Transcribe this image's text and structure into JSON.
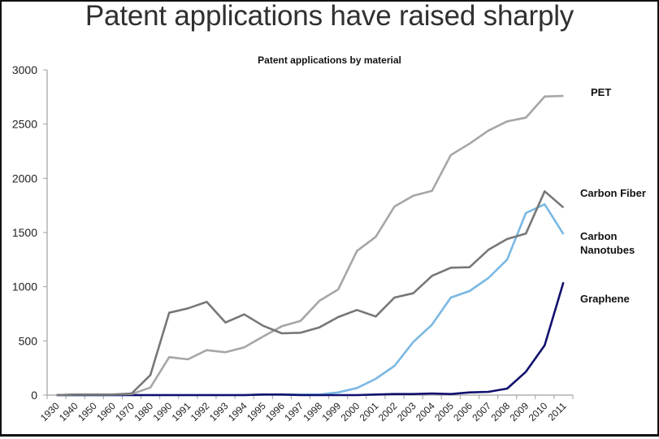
{
  "header": {
    "title": "Patent applications have raised sharply"
  },
  "chart_data": {
    "type": "line",
    "title": "Patent applications by material",
    "xlabel": "",
    "ylabel": "",
    "ylim": [
      0,
      3000
    ],
    "yticks": [
      "0",
      "500",
      "1000",
      "1500",
      "2000",
      "2500",
      "3000"
    ],
    "ytick_values": [
      0,
      500,
      1000,
      1500,
      2000,
      2500,
      3000
    ],
    "grid": false,
    "legend": "direct labels at right end of lines",
    "categories": [
      "1930",
      "1940",
      "1950",
      "1960",
      "1970",
      "1980",
      "1990",
      "1991",
      "1992",
      "1993",
      "1994",
      "1995",
      "1996",
      "1997",
      "1998",
      "1999",
      "2000",
      "2001",
      "2002",
      "2003",
      "2004",
      "2005",
      "2006",
      "2007",
      "2008",
      "2009",
      "2010",
      "2011"
    ],
    "series": [
      {
        "name": "PET",
        "label_lines": [
          "PET"
        ],
        "color": "#a6a6a6",
        "values": [
          0,
          5,
          5,
          5,
          10,
          70,
          350,
          330,
          415,
          395,
          440,
          540,
          635,
          685,
          870,
          975,
          1330,
          1460,
          1740,
          1840,
          1885,
          2215,
          2320,
          2440,
          2525,
          2560,
          2755,
          2760
        ]
      },
      {
        "name": "Carbon Fiber",
        "label_lines": [
          "Carbon Fiber"
        ],
        "color": "#777777",
        "values": [
          0,
          5,
          5,
          5,
          15,
          185,
          760,
          800,
          860,
          670,
          745,
          640,
          570,
          575,
          625,
          720,
          785,
          725,
          900,
          940,
          1100,
          1175,
          1180,
          1340,
          1440,
          1490,
          1880,
          1730
        ]
      },
      {
        "name": "Carbon Nanotubes",
        "label_lines": [
          "Carbon",
          "Nanotubes"
        ],
        "color": "#7ab8e3",
        "values": [
          0,
          0,
          0,
          0,
          0,
          0,
          0,
          0,
          0,
          0,
          0,
          5,
          5,
          5,
          5,
          25,
          65,
          150,
          270,
          490,
          650,
          900,
          960,
          1080,
          1250,
          1680,
          1760,
          1485
        ]
      },
      {
        "name": "Graphene",
        "label_lines": [
          "Graphene"
        ],
        "color": "#10106e",
        "values": [
          0,
          0,
          0,
          0,
          0,
          0,
          0,
          0,
          0,
          0,
          0,
          5,
          5,
          0,
          0,
          0,
          0,
          5,
          10,
          10,
          15,
          10,
          25,
          30,
          60,
          215,
          460,
          1040
        ]
      }
    ],
    "axis_color": "#a0a0a0"
  }
}
